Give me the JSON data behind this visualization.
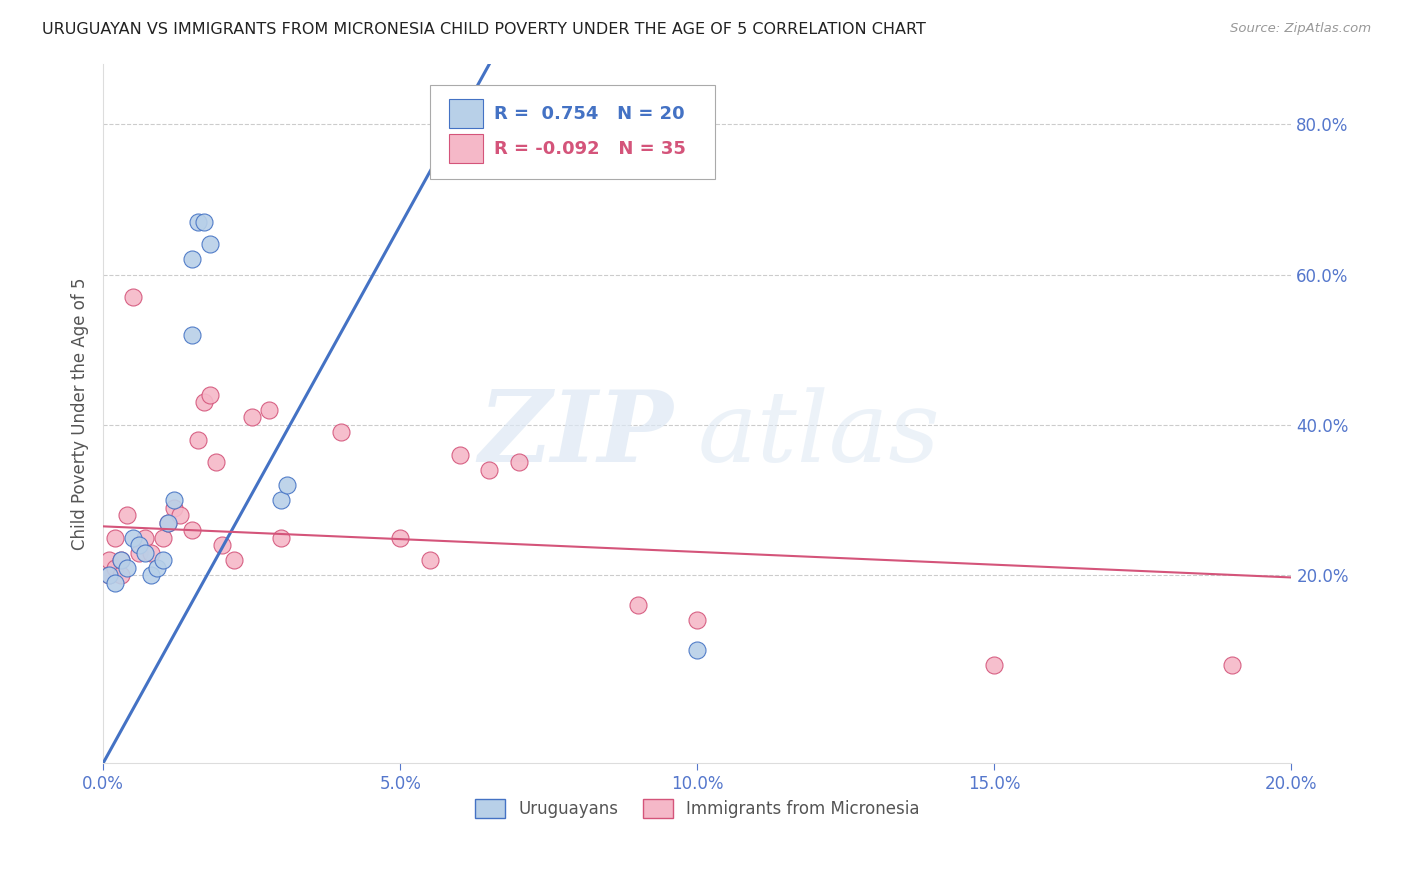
{
  "title": "URUGUAYAN VS IMMIGRANTS FROM MICRONESIA CHILD POVERTY UNDER THE AGE OF 5 CORRELATION CHART",
  "source": "Source: ZipAtlas.com",
  "ylabel": "Child Poverty Under the Age of 5",
  "xlim": [
    0.0,
    0.2
  ],
  "ylim": [
    -0.05,
    0.88
  ],
  "right_yticks": [
    0.2,
    0.4,
    0.6,
    0.8
  ],
  "right_yticklabels": [
    "20.0%",
    "40.0%",
    "60.0%",
    "80.0%"
  ],
  "xticks": [
    0.0,
    0.05,
    0.1,
    0.15,
    0.2
  ],
  "xticklabels": [
    "0.0%",
    "5.0%",
    "10.0%",
    "15.0%",
    "20.0%"
  ],
  "blue_label": "Uruguayans",
  "pink_label": "Immigrants from Micronesia",
  "blue_R": 0.754,
  "blue_N": 20,
  "pink_R": -0.092,
  "pink_N": 35,
  "blue_color": "#b8d0e8",
  "pink_color": "#f5b8c8",
  "blue_line_color": "#4472c4",
  "pink_line_color": "#d4547a",
  "watermark_zip": "ZIP",
  "watermark_atlas": "atlas",
  "blue_line_x0": 0.0,
  "blue_line_y0": -0.05,
  "blue_line_x1": 0.065,
  "blue_line_y1": 0.88,
  "pink_line_x0": 0.0,
  "pink_line_y0": 0.265,
  "pink_line_x1": 0.2,
  "pink_line_y1": 0.197,
  "blue_x": [
    0.001,
    0.002,
    0.003,
    0.004,
    0.005,
    0.006,
    0.007,
    0.008,
    0.009,
    0.01,
    0.011,
    0.012,
    0.015,
    0.016,
    0.017,
    0.018,
    0.03,
    0.031,
    0.015,
    0.1
  ],
  "blue_y": [
    0.2,
    0.19,
    0.22,
    0.21,
    0.25,
    0.24,
    0.23,
    0.2,
    0.21,
    0.22,
    0.27,
    0.3,
    0.62,
    0.67,
    0.67,
    0.64,
    0.3,
    0.32,
    0.52,
    0.1
  ],
  "pink_x": [
    0.001,
    0.001,
    0.002,
    0.002,
    0.003,
    0.003,
    0.004,
    0.005,
    0.006,
    0.007,
    0.008,
    0.01,
    0.011,
    0.012,
    0.013,
    0.015,
    0.016,
    0.017,
    0.018,
    0.019,
    0.02,
    0.022,
    0.025,
    0.028,
    0.03,
    0.04,
    0.05,
    0.055,
    0.06,
    0.065,
    0.07,
    0.09,
    0.1,
    0.15,
    0.19
  ],
  "pink_y": [
    0.22,
    0.2,
    0.21,
    0.25,
    0.22,
    0.2,
    0.28,
    0.57,
    0.23,
    0.25,
    0.23,
    0.25,
    0.27,
    0.29,
    0.28,
    0.26,
    0.38,
    0.43,
    0.44,
    0.35,
    0.24,
    0.22,
    0.41,
    0.42,
    0.25,
    0.39,
    0.25,
    0.22,
    0.36,
    0.34,
    0.35,
    0.16,
    0.14,
    0.08,
    0.08
  ],
  "background_color": "#ffffff",
  "grid_color": "#cccccc"
}
